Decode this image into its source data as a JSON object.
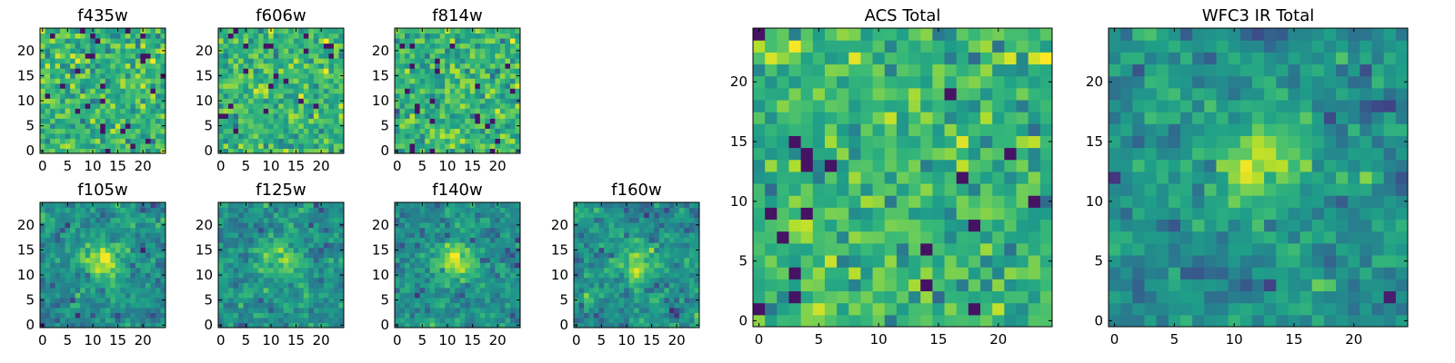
{
  "chart_data": [
    {
      "type": "heatmap",
      "title": "f435w",
      "grid_size": 25,
      "colormap": "viridis",
      "xticks": [
        "0",
        "5",
        "10",
        "15",
        "20"
      ],
      "yticks": [
        "0",
        "5",
        "10",
        "15",
        "20"
      ],
      "peak": [
        13,
        11
      ],
      "structure": "noise"
    },
    {
      "type": "heatmap",
      "title": "f606w",
      "grid_size": 25,
      "colormap": "viridis",
      "xticks": [
        "0",
        "5",
        "10",
        "15",
        "20"
      ],
      "yticks": [
        "0",
        "5",
        "10",
        "15",
        "20"
      ],
      "peak": [
        12,
        12
      ],
      "structure": "noise"
    },
    {
      "type": "heatmap",
      "title": "f814w",
      "grid_size": 25,
      "colormap": "viridis",
      "xticks": [
        "0",
        "5",
        "10",
        "15",
        "20"
      ],
      "yticks": [
        "0",
        "5",
        "10",
        "15",
        "20"
      ],
      "peak": [
        12,
        11
      ],
      "structure": "noise"
    },
    {
      "type": "heatmap",
      "title": "f105w",
      "grid_size": 25,
      "colormap": "viridis",
      "xticks": [
        "0",
        "5",
        "10",
        "15",
        "20"
      ],
      "yticks": [
        "0",
        "5",
        "10",
        "15",
        "20"
      ],
      "peak": [
        12,
        13
      ],
      "structure": "central source"
    },
    {
      "type": "heatmap",
      "title": "f125w",
      "grid_size": 25,
      "colormap": "viridis",
      "xticks": [
        "0",
        "5",
        "10",
        "15",
        "20"
      ],
      "yticks": [
        "0",
        "5",
        "10",
        "15",
        "20"
      ],
      "peak": [
        12,
        14
      ],
      "structure": "central source"
    },
    {
      "type": "heatmap",
      "title": "f140w",
      "grid_size": 25,
      "colormap": "viridis",
      "xticks": [
        "0",
        "5",
        "10",
        "15",
        "20"
      ],
      "yticks": [
        "0",
        "5",
        "10",
        "15",
        "20"
      ],
      "peak": [
        12,
        13
      ],
      "structure": "central source"
    },
    {
      "type": "heatmap",
      "title": "f160w",
      "grid_size": 25,
      "colormap": "viridis",
      "xticks": [
        "0",
        "5",
        "10",
        "15",
        "20"
      ],
      "yticks": [
        "0",
        "5",
        "10",
        "15",
        "20"
      ],
      "peak": [
        12,
        13
      ],
      "structure": "central source"
    },
    {
      "type": "heatmap",
      "title": "ACS Total",
      "grid_size": 25,
      "colormap": "viridis",
      "xticks": [
        "0",
        "5",
        "10",
        "15",
        "20"
      ],
      "yticks": [
        "0",
        "5",
        "10",
        "15",
        "20"
      ],
      "peak": [
        12,
        11
      ],
      "structure": "noise"
    },
    {
      "type": "heatmap",
      "title": "WFC3 IR Total",
      "grid_size": 25,
      "colormap": "viridis",
      "xticks": [
        "0",
        "5",
        "10",
        "15",
        "20"
      ],
      "yticks": [
        "0",
        "5",
        "10",
        "15",
        "20"
      ],
      "peak": [
        12,
        13
      ],
      "structure": "central source"
    }
  ]
}
